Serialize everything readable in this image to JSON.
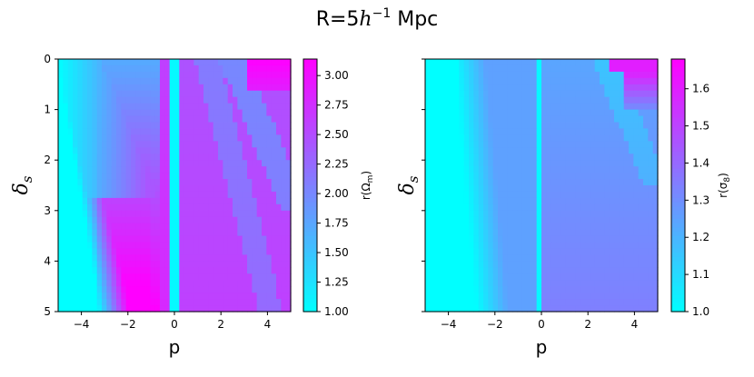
{
  "title": {
    "prefix": "R=5",
    "italic": "h",
    "sup": "−1",
    "suffix": " Mpc"
  },
  "chart_data": [
    {
      "type": "heatmap",
      "xlabel": "p",
      "ylabel_main": "δ",
      "ylabel_sub": "s",
      "xlim": [
        -5,
        5
      ],
      "ylim": [
        5,
        0
      ],
      "xticks": [
        -4,
        -2,
        0,
        2,
        4
      ],
      "xtick_labels": [
        "−4",
        "−2",
        "0",
        "2",
        "4"
      ],
      "yticks": [
        0,
        1,
        2,
        3,
        4,
        5
      ],
      "ytick_labels": [
        "0",
        "1",
        "2",
        "3",
        "4",
        "5"
      ],
      "colorbar": {
        "label_prefix": "r(Ω",
        "label_sub": "m",
        "label_suffix": ")",
        "range": [
          1.0,
          3.14
        ],
        "ticks": [
          1.0,
          1.25,
          1.5,
          1.75,
          2.0,
          2.25,
          2.5,
          2.75,
          3.0
        ],
        "tick_labels": [
          "1.00",
          "1.25",
          "1.50",
          "1.75",
          "2.00",
          "2.25",
          "2.50",
          "2.75",
          "3.00"
        ],
        "colormap": "cool"
      },
      "grid": false,
      "legend": "none"
    },
    {
      "type": "heatmap",
      "xlabel": "p",
      "ylabel_main": "δ",
      "ylabel_sub": "s",
      "xlim": [
        -5,
        5
      ],
      "ylim": [
        5,
        0
      ],
      "xticks": [
        -4,
        -2,
        0,
        2,
        4
      ],
      "xtick_labels": [
        "−4",
        "−2",
        "0",
        "2",
        "4"
      ],
      "yticks": [
        0,
        1,
        2,
        3,
        4,
        5
      ],
      "ytick_labels": [],
      "colorbar": {
        "label_prefix": "r(σ",
        "label_sub": "8",
        "label_suffix": ")",
        "range": [
          1.0,
          1.68
        ],
        "ticks": [
          1.0,
          1.1,
          1.2,
          1.3,
          1.4,
          1.5,
          1.6
        ],
        "tick_labels": [
          "1.0",
          "1.1",
          "1.2",
          "1.3",
          "1.4",
          "1.5",
          "1.6"
        ],
        "colormap": "cool"
      },
      "grid": false,
      "legend": "none"
    }
  ],
  "colors": {
    "cmap_low": "#00ffff",
    "cmap_high": "#ff00ff",
    "axis": "#000000"
  }
}
